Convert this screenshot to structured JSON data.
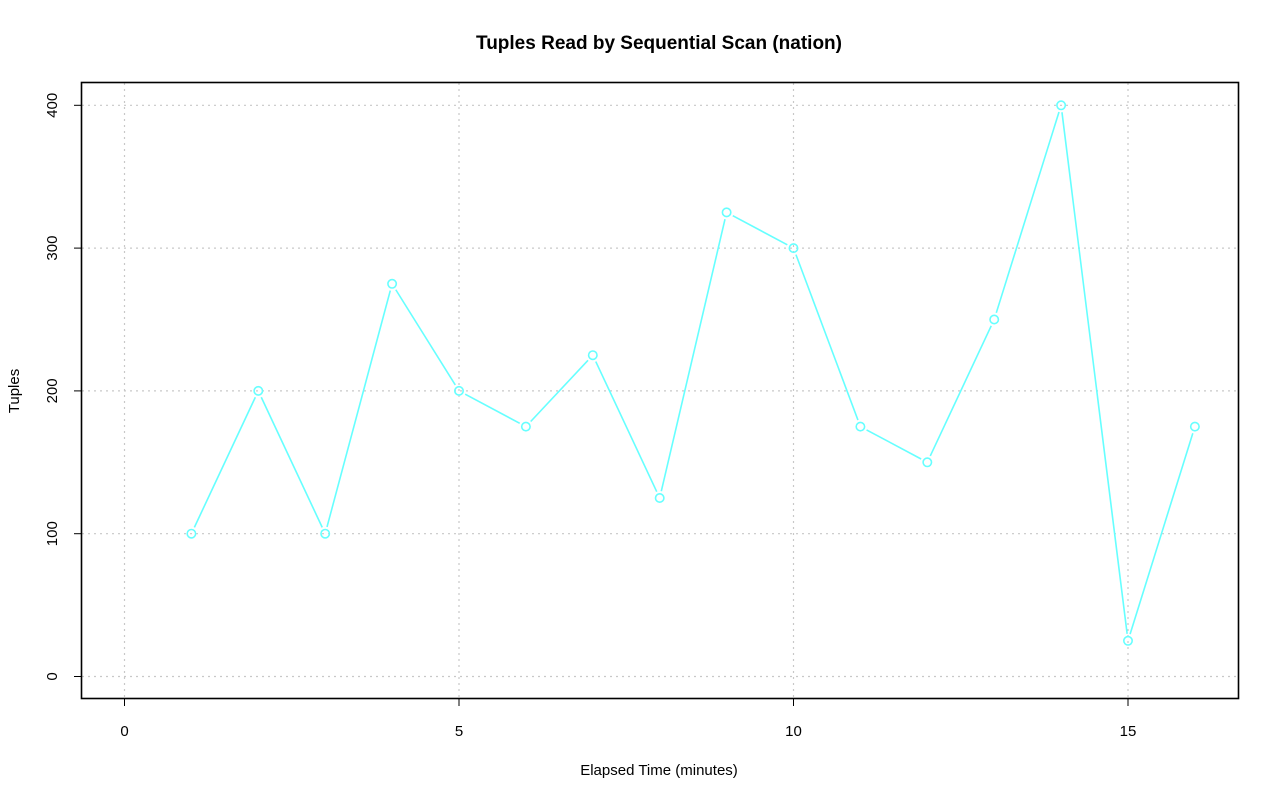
{
  "chart_data": {
    "type": "line",
    "title": "Tuples Read by Sequential Scan (nation)",
    "xlabel": "Elapsed Time (minutes)",
    "ylabel": "Tuples",
    "xlim": [
      0,
      16
    ],
    "ylim": [
      0,
      400
    ],
    "x_ticks": [
      0,
      5,
      10,
      15
    ],
    "y_ticks": [
      0,
      100,
      200,
      300,
      400
    ],
    "grid": true,
    "series": [
      {
        "color": "#66ffff",
        "x": [
          1,
          2,
          3,
          4,
          5,
          6,
          7,
          8,
          9,
          10,
          11,
          12,
          13,
          14,
          15,
          16
        ],
        "y": [
          100,
          200,
          100,
          275,
          200,
          175,
          225,
          125,
          325,
          300,
          175,
          150,
          250,
          400,
          25,
          175
        ]
      }
    ]
  }
}
